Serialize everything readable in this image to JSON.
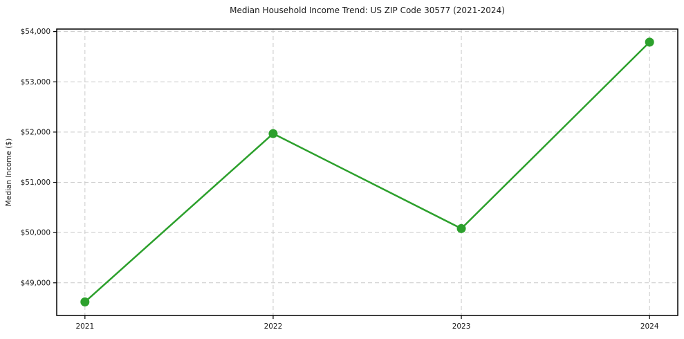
{
  "chart_data": {
    "type": "line",
    "title": "Median Household Income Trend: US ZIP Code 30577 (2021-2024)",
    "xlabel": "",
    "ylabel": "Median Income ($)",
    "x": [
      2021,
      2022,
      2023,
      2024
    ],
    "x_tick_labels": [
      "2021",
      "2022",
      "2023",
      "2024"
    ],
    "series": [
      {
        "name": "Median Household Income",
        "values": [
          48620,
          51970,
          50080,
          53790
        ]
      }
    ],
    "y_ticks": [
      49000,
      50000,
      51000,
      52000,
      53000,
      54000
    ],
    "y_tick_labels": [
      "$49,000",
      "$50,000",
      "$51,000",
      "$52,000",
      "$53,000",
      "$54,000"
    ],
    "xlim": [
      2020.85,
      2024.15
    ],
    "ylim": [
      48350,
      54050
    ],
    "grid": true,
    "grid_style": "dashed",
    "legend": false,
    "line_color": "#2ca02c",
    "marker": "circle",
    "marker_color": "#2ca02c",
    "grid_color": "#c9c9c9",
    "axis_color": "#000000",
    "background": "#ffffff"
  }
}
